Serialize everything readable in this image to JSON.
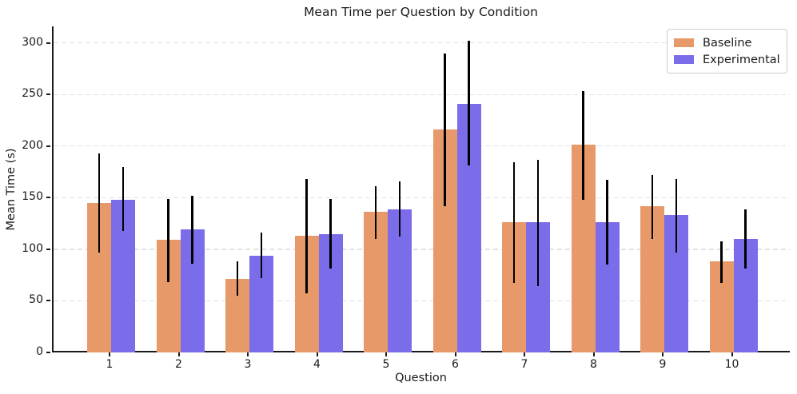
{
  "chart_data": {
    "type": "bar",
    "title": "Mean Time per Question by Condition",
    "xlabel": "Question",
    "ylabel": "Mean Time (s)",
    "categories": [
      "1",
      "2",
      "3",
      "4",
      "5",
      "6",
      "7",
      "8",
      "9",
      "10"
    ],
    "series": [
      {
        "name": "Baseline",
        "color": "#E8996A",
        "values": [
          145,
          109,
          71,
          113,
          136,
          216,
          126,
          201,
          142,
          88
        ],
        "error_min": [
          97,
          68,
          55,
          57,
          110,
          142,
          67,
          148,
          110,
          67
        ],
        "error_max": [
          193,
          149,
          88,
          168,
          161,
          290,
          184,
          253,
          172,
          108
        ]
      },
      {
        "name": "Experimental",
        "color": "#7B6CEA",
        "values": [
          148,
          119,
          94,
          115,
          139,
          241,
          126,
          126,
          133,
          110
        ],
        "error_min": [
          118,
          86,
          72,
          81,
          112,
          181,
          64,
          85,
          97,
          81
        ],
        "error_max": [
          180,
          152,
          116,
          149,
          166,
          302,
          187,
          167,
          168,
          139
        ]
      }
    ],
    "yticks": [
      0,
      50,
      100,
      150,
      200,
      250,
      300
    ],
    "ylim": [
      0,
      316
    ],
    "grid": "horizontal-dashed",
    "grid_color": "#e2e2e2",
    "axis_color": "#1a1a1a",
    "error_bar_color": "#000000",
    "legend_position": "top-right"
  }
}
